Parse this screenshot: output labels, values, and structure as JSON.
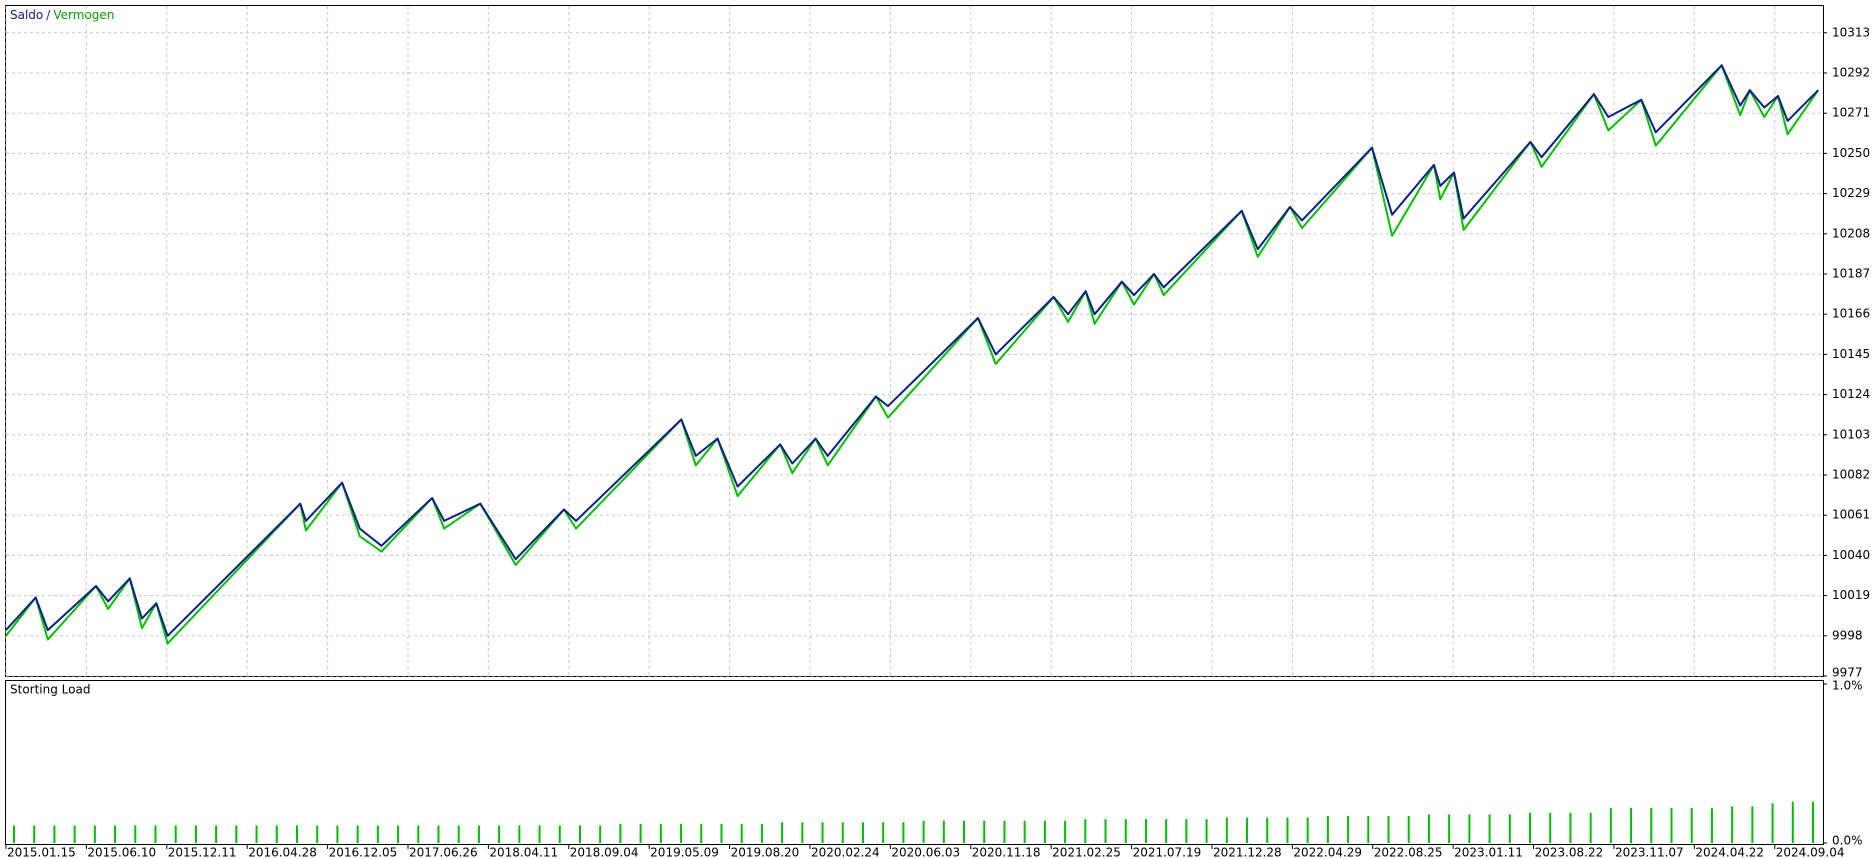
{
  "chart_data": [
    {
      "type": "line",
      "legend_separator": "/",
      "xlim": [
        0,
        22.6
      ],
      "xticks": [
        {
          "value": 0,
          "label": "2015.01.15"
        },
        {
          "value": 1,
          "label": "2015.06.10"
        },
        {
          "value": 2,
          "label": "2015.12.11"
        },
        {
          "value": 3,
          "label": "2016.04.28"
        },
        {
          "value": 4,
          "label": "2016.12.05"
        },
        {
          "value": 5,
          "label": "2017.06.26"
        },
        {
          "value": 6,
          "label": "2018.04.11"
        },
        {
          "value": 7,
          "label": "2018.09.04"
        },
        {
          "value": 8,
          "label": "2019.05.09"
        },
        {
          "value": 9,
          "label": "2019.08.20"
        },
        {
          "value": 10,
          "label": "2020.02.24"
        },
        {
          "value": 11,
          "label": "2020.06.03"
        },
        {
          "value": 12,
          "label": "2020.11.18"
        },
        {
          "value": 13,
          "label": "2021.02.25"
        },
        {
          "value": 14,
          "label": "2021.07.19"
        },
        {
          "value": 15,
          "label": "2021.12.28"
        },
        {
          "value": 16,
          "label": "2022.04.29"
        },
        {
          "value": 17,
          "label": "2022.08.25"
        },
        {
          "value": 18,
          "label": "2023.01.11"
        },
        {
          "value": 19,
          "label": "2023.08.22"
        },
        {
          "value": 20,
          "label": "2023.11.07"
        },
        {
          "value": 21,
          "label": "2024.04.22"
        },
        {
          "value": 22,
          "label": "2024.09.04"
        }
      ],
      "ylim": [
        9977,
        10327
      ],
      "yticks": [
        9977,
        9998,
        10019,
        10040,
        10061,
        10082,
        10103,
        10124,
        10145,
        10166,
        10187,
        10208,
        10229,
        10250,
        10271,
        10292,
        10313
      ],
      "grid": true,
      "x": [
        0,
        0.37,
        0.52,
        1.12,
        1.27,
        1.54,
        1.69,
        1.87,
        2.01,
        3.66,
        3.73,
        4.18,
        4.4,
        4.67,
        5.3,
        5.45,
        5.9,
        6.34,
        6.94,
        7.09,
        8.4,
        8.58,
        8.85,
        9.1,
        9.63,
        9.78,
        10.07,
        10.22,
        10.82,
        10.97,
        12.09,
        12.31,
        13.03,
        13.21,
        13.43,
        13.54,
        13.88,
        14.03,
        14.28,
        14.4,
        15.37,
        15.57,
        15.97,
        16.12,
        16.99,
        17.24,
        17.76,
        17.84,
        18.01,
        18.13,
        18.96,
        19.1,
        19.75,
        19.93,
        20.34,
        20.52,
        21.34,
        21.57,
        21.69,
        21.87,
        22.04,
        22.16,
        22.54
      ],
      "series": [
        {
          "name": "Vermogen",
          "color": "#00c000",
          "values": [
            9998,
            10018,
            9996,
            10024,
            10012,
            10028,
            10002,
            10015,
            9994,
            10067,
            10053,
            10078,
            10050,
            10042,
            10070,
            10054,
            10067,
            10035,
            10064,
            10054,
            10111,
            10087,
            10101,
            10071,
            10098,
            10083,
            10101,
            10087,
            10123,
            10112,
            10164,
            10140,
            10175,
            10162,
            10178,
            10161,
            10183,
            10171,
            10187,
            10176,
            10220,
            10196,
            10222,
            10211,
            10253,
            10207,
            10244,
            10226,
            10240,
            10210,
            10256,
            10243,
            10281,
            10262,
            10278,
            10254,
            10296,
            10270,
            10283,
            10269,
            10280,
            10260,
            10283
          ]
        },
        {
          "name": "Saldo",
          "color": "#0b1e8c",
          "values": [
            10001,
            10018,
            10001,
            10024,
            10016,
            10028,
            10007,
            10015,
            9998,
            10067,
            10058,
            10078,
            10054,
            10045,
            10070,
            10058,
            10067,
            10038,
            10064,
            10058,
            10111,
            10092,
            10101,
            10076,
            10098,
            10088,
            10101,
            10092,
            10123,
            10118,
            10164,
            10145,
            10175,
            10166,
            10178,
            10166,
            10183,
            10176,
            10187,
            10180,
            10220,
            10200,
            10222,
            10215,
            10253,
            10218,
            10244,
            10233,
            10240,
            10216,
            10256,
            10248,
            10281,
            10269,
            10278,
            10261,
            10296,
            10275,
            10283,
            10274,
            10280,
            10267,
            10283
          ]
        }
      ]
    },
    {
      "type": "bar",
      "title": "Storting Load",
      "color": "#00c000",
      "ylim": [
        0,
        1
      ],
      "yticks": [
        {
          "value": 0,
          "label": "0.0%"
        },
        {
          "value": 1,
          "label": "1.0%"
        }
      ],
      "values": [
        0.11,
        0.11,
        0.11,
        0.11,
        0.11,
        0.11,
        0.11,
        0.11,
        0.11,
        0.11,
        0.11,
        0.11,
        0.11,
        0.11,
        0.11,
        0.11,
        0.11,
        0.11,
        0.11,
        0.11,
        0.11,
        0.11,
        0.11,
        0.11,
        0.11,
        0.11,
        0.11,
        0.11,
        0.11,
        0.11,
        0.12,
        0.12,
        0.12,
        0.12,
        0.12,
        0.12,
        0.12,
        0.12,
        0.13,
        0.13,
        0.13,
        0.13,
        0.13,
        0.13,
        0.13,
        0.14,
        0.14,
        0.14,
        0.14,
        0.14,
        0.14,
        0.14,
        0.14,
        0.15,
        0.15,
        0.15,
        0.15,
        0.15,
        0.15,
        0.15,
        0.16,
        0.16,
        0.16,
        0.16,
        0.16,
        0.17,
        0.17,
        0.17,
        0.17,
        0.17,
        0.18,
        0.18,
        0.18,
        0.18,
        0.18,
        0.19,
        0.19,
        0.19,
        0.19,
        0.22,
        0.22,
        0.22,
        0.22,
        0.22,
        0.22,
        0.23,
        0.23,
        0.25,
        0.26,
        0.26
      ]
    }
  ]
}
